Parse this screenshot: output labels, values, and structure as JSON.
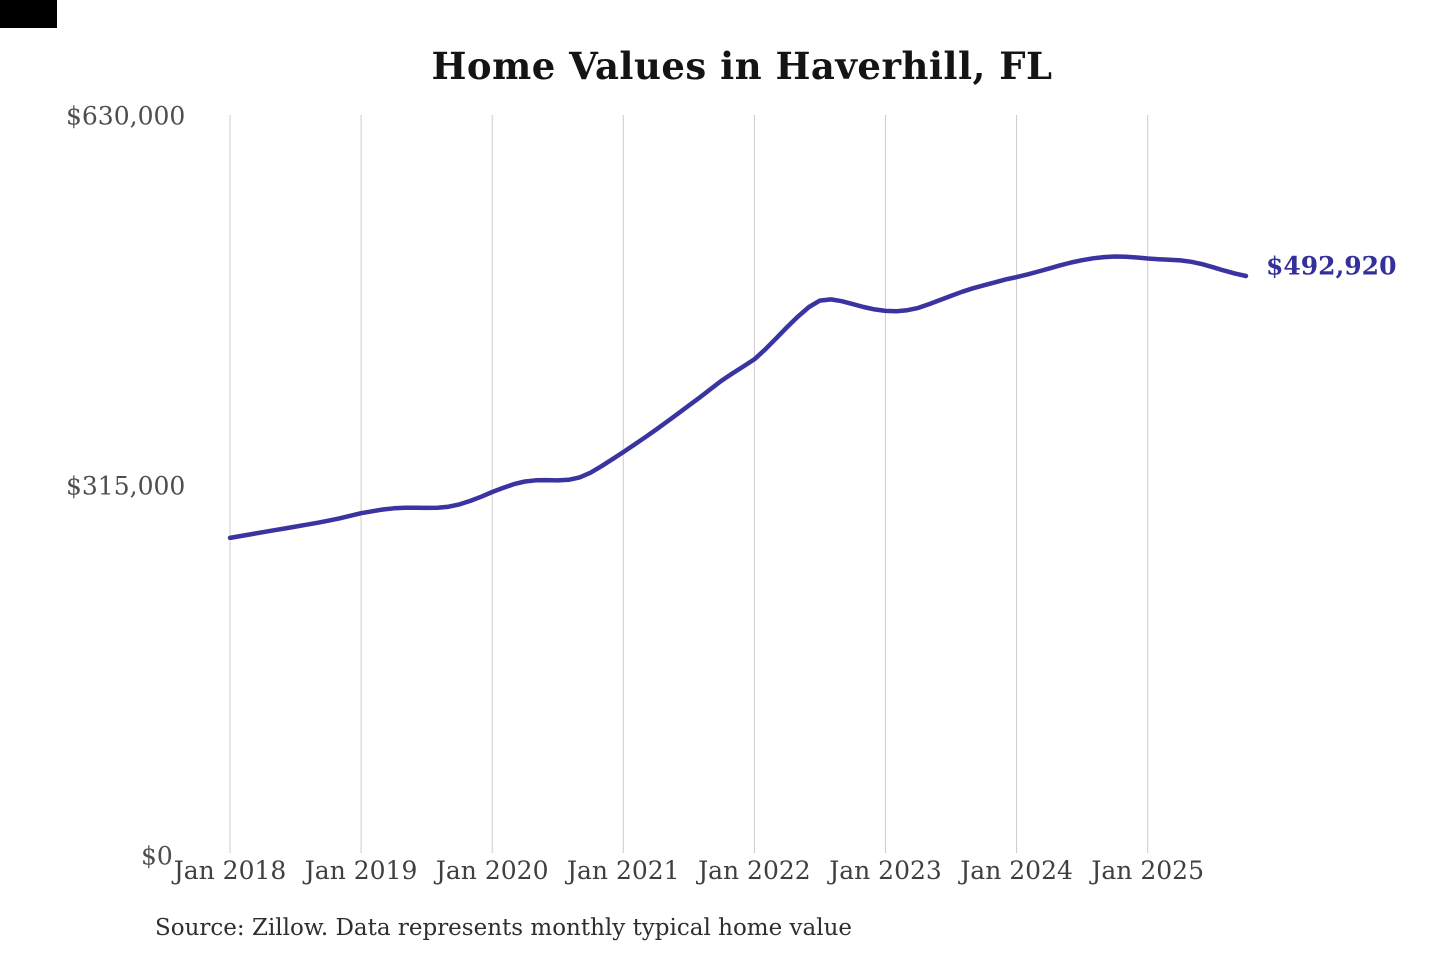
{
  "page": {
    "title": "Home Values in Haverhill, FL",
    "end_label": "$492,920",
    "source_note": "Source: Zillow. Data represents monthly typical home value"
  },
  "chart_data": {
    "type": "line",
    "title": "Home Values in Haverhill, FL",
    "grid": "vertical-only",
    "legend": "none",
    "line_color": "#3a34a0",
    "label_color": "#34309b",
    "gridline_color": "#cccccc",
    "x_axis": {
      "tick_labels": [
        "Jan 2018",
        "Jan 2019",
        "Jan 2020",
        "Jan 2021",
        "Jan 2022",
        "Jan 2023",
        "Jan 2024",
        "Jan 2025"
      ],
      "frequency": "monthly",
      "start_month": "Jan 2018",
      "end_month": "Oct 2025"
    },
    "y_axis": {
      "tick_labels": [
        "$0",
        "$315,000",
        "$630,000"
      ],
      "tick_values": [
        0,
        315000,
        630000
      ],
      "range": [
        0,
        630000
      ],
      "unit": "USD"
    },
    "series": [
      {
        "name": "Monthly typical home value",
        "start": "Jan 2018",
        "end": "Oct 2025",
        "values": [
          270000,
          271600,
          273200,
          274800,
          276400,
          278000,
          279600,
          281200,
          282800,
          284600,
          286600,
          288800,
          291000,
          292600,
          294100,
          295200,
          295600,
          295600,
          295500,
          295700,
          296500,
          298500,
          301500,
          305000,
          309000,
          312500,
          315800,
          318000,
          319000,
          319200,
          318900,
          319400,
          321500,
          325500,
          331000,
          337000,
          343000,
          349200,
          355600,
          362200,
          368900,
          375700,
          382600,
          389600,
          396700,
          403900,
          410000,
          416000,
          422000,
          430500,
          440000,
          449500,
          458500,
          466500,
          472000,
          473000,
          471500,
          469000,
          466500,
          464500,
          463200,
          463000,
          463800,
          465800,
          469000,
          472500,
          476000,
          479500,
          482500,
          485000,
          487500,
          490000,
          492000,
          494300,
          496800,
          499400,
          502000,
          504400,
          506400,
          508000,
          509000,
          509500,
          509300,
          508700,
          507800,
          507200,
          506800,
          506200,
          505000,
          503000,
          500300,
          497500,
          495000,
          492920
        ]
      }
    ],
    "last_value": 492920,
    "last_value_label": "$492,920"
  }
}
